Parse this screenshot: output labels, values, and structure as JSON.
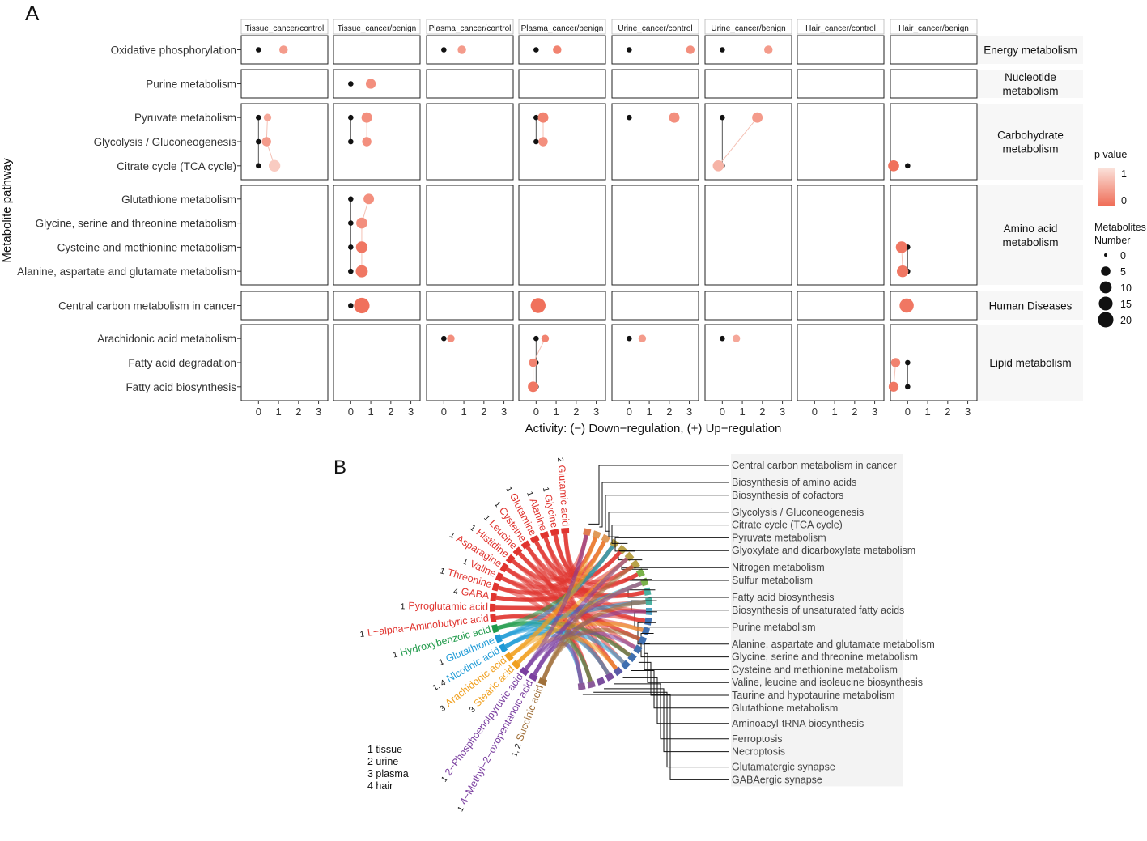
{
  "panel_labels": {
    "a": "A",
    "b": "B"
  },
  "chart_data": [
    {
      "type": "scatter",
      "title": "",
      "xlabel": "Activity: (−) Down−regulation, (+) Up−regulation",
      "ylabel": "Metabolite pathway",
      "xticks": [
        "0",
        "1",
        "2",
        "3"
      ],
      "xlim": [
        -0.7,
        3.3
      ],
      "columns": [
        "Tissue_cancer/control",
        "Tissue_cancer/benign",
        "Plasma_cancer/control",
        "Plasma_cancer/benign",
        "Urine_cancer/control",
        "Urine_cancer/benign",
        "Hair_cancer/control",
        "Hair_cancer/benign"
      ],
      "groups": [
        {
          "label": "Energy metabolism",
          "label_lines": [
            "Energy metabolism"
          ],
          "pathways": [
            "Oxidative phosphorylation"
          ]
        },
        {
          "label": "Nucleotide metabolism",
          "label_lines": [
            "Nucleotide",
            "metabolism"
          ],
          "pathways": [
            "Purine metabolism"
          ]
        },
        {
          "label": "Carbohydrate metabolism",
          "label_lines": [
            "Carbohydrate",
            "metabolism"
          ],
          "pathways": [
            "Pyruvate metabolism",
            "Glycolysis / Gluconeogenesis",
            "Citrate cycle (TCA cycle)"
          ]
        },
        {
          "label": "Amino acid metabolism",
          "label_lines": [
            "Amino acid",
            "metabolism"
          ],
          "pathways": [
            "Glutathione metabolism",
            "Glycine, serine and threonine metabolism",
            "Cysteine and methionine metabolism",
            "Alanine, aspartate and glutamate metabolism"
          ]
        },
        {
          "label": "Human Diseases",
          "label_lines": [
            "Human Diseases"
          ],
          "pathways": [
            "Central carbon metabolism in cancer"
          ]
        },
        {
          "label": "Lipid metabolism",
          "label_lines": [
            "Lipid metabolism"
          ],
          "pathways": [
            "Arachidonic acid metabolism",
            "Fatty acid degradation",
            "Fatty acid biosynthesis"
          ]
        }
      ],
      "points": [
        {
          "pathway": "Oxidative phosphorylation",
          "col": 0,
          "activity": 1.25,
          "n": 3,
          "p": 0.4
        },
        {
          "pathway": "Oxidative phosphorylation",
          "col": 2,
          "activity": 0.9,
          "n": 3,
          "p": 0.4
        },
        {
          "pathway": "Oxidative phosphorylation",
          "col": 3,
          "activity": 1.05,
          "n": 3,
          "p": 0.2
        },
        {
          "pathway": "Oxidative phosphorylation",
          "col": 4,
          "activity": 3.05,
          "n": 3,
          "p": 0.3
        },
        {
          "pathway": "Oxidative phosphorylation",
          "col": 5,
          "activity": 2.3,
          "n": 3,
          "p": 0.4
        },
        {
          "pathway": "Purine metabolism",
          "col": 1,
          "activity": 1.0,
          "n": 5,
          "p": 0.3
        },
        {
          "pathway": "Pyruvate metabolism",
          "col": 0,
          "activity": 0.45,
          "n": 2,
          "p": 0.5
        },
        {
          "pathway": "Pyruvate metabolism",
          "col": 1,
          "activity": 0.8,
          "n": 6,
          "p": 0.3
        },
        {
          "pathway": "Pyruvate metabolism",
          "col": 3,
          "activity": 0.35,
          "n": 6,
          "p": 0.2
        },
        {
          "pathway": "Pyruvate metabolism",
          "col": 4,
          "activity": 2.25,
          "n": 6,
          "p": 0.3
        },
        {
          "pathway": "Pyruvate metabolism",
          "col": 5,
          "activity": 1.75,
          "n": 6,
          "p": 0.4
        },
        {
          "pathway": "Glycolysis / Gluconeogenesis",
          "col": 0,
          "activity": 0.4,
          "n": 4,
          "p": 0.4
        },
        {
          "pathway": "Glycolysis / Gluconeogenesis",
          "col": 1,
          "activity": 0.8,
          "n": 4,
          "p": 0.3
        },
        {
          "pathway": "Glycolysis / Gluconeogenesis",
          "col": 3,
          "activity": 0.35,
          "n": 4,
          "p": 0.3
        },
        {
          "pathway": "Citrate cycle (TCA cycle)",
          "col": 0,
          "activity": 0.8,
          "n": 8,
          "p": 0.8
        },
        {
          "pathway": "Citrate cycle (TCA cycle)",
          "col": 5,
          "activity": -0.2,
          "n": 7,
          "p": 0.6
        },
        {
          "pathway": "Citrate cycle (TCA cycle)",
          "col": 7,
          "activity": -0.7,
          "n": 7,
          "p": 0.05
        },
        {
          "pathway": "Glutathione metabolism",
          "col": 1,
          "activity": 0.9,
          "n": 6,
          "p": 0.3
        },
        {
          "pathway": "Glycine, serine and threonine metabolism",
          "col": 1,
          "activity": 0.55,
          "n": 7,
          "p": 0.3
        },
        {
          "pathway": "Cysteine and methionine metabolism",
          "col": 1,
          "activity": 0.55,
          "n": 8,
          "p": 0.1
        },
        {
          "pathway": "Cysteine and methionine metabolism",
          "col": 7,
          "activity": -0.3,
          "n": 8,
          "p": 0.1
        },
        {
          "pathway": "Alanine, aspartate and glutamate metabolism",
          "col": 1,
          "activity": 0.55,
          "n": 9,
          "p": 0.1
        },
        {
          "pathway": "Alanine, aspartate and glutamate metabolism",
          "col": 7,
          "activity": -0.25,
          "n": 8,
          "p": 0.1
        },
        {
          "pathway": "Central carbon metabolism in cancer",
          "col": 1,
          "activity": 0.55,
          "n": 18,
          "p": 0.05
        },
        {
          "pathway": "Central carbon metabolism in cancer",
          "col": 3,
          "activity": 0.1,
          "n": 16,
          "p": 0.05
        },
        {
          "pathway": "Central carbon metabolism in cancer",
          "col": 7,
          "activity": -0.05,
          "n": 14,
          "p": 0.1
        },
        {
          "pathway": "Arachidonic acid metabolism",
          "col": 2,
          "activity": 0.35,
          "n": 2,
          "p": 0.3
        },
        {
          "pathway": "Arachidonic acid metabolism",
          "col": 3,
          "activity": 0.45,
          "n": 2,
          "p": 0.2
        },
        {
          "pathway": "Arachidonic acid metabolism",
          "col": 4,
          "activity": 0.65,
          "n": 2,
          "p": 0.4
        },
        {
          "pathway": "Arachidonic acid metabolism",
          "col": 5,
          "activity": 0.7,
          "n": 2,
          "p": 0.5
        },
        {
          "pathway": "Fatty acid degradation",
          "col": 3,
          "activity": -0.15,
          "n": 3,
          "p": 0.2
        },
        {
          "pathway": "Fatty acid degradation",
          "col": 7,
          "activity": -0.6,
          "n": 4,
          "p": 0.2
        },
        {
          "pathway": "Fatty acid biosynthesis",
          "col": 3,
          "activity": -0.15,
          "n": 6,
          "p": 0.1
        },
        {
          "pathway": "Fatty acid biosynthesis",
          "col": 7,
          "activity": -0.7,
          "n": 5,
          "p": 0.1
        }
      ],
      "legend": {
        "p_title": "p value",
        "p_ticks": [
          "1",
          "0"
        ],
        "size_title_lines": [
          "Metabolites",
          "Number"
        ],
        "size_values": [
          0,
          5,
          10,
          15,
          20
        ],
        "size_labels": [
          "0",
          "5",
          "10",
          "15",
          "20"
        ]
      }
    },
    {
      "type": "chord",
      "title": "",
      "metabolites": [
        {
          "name": "Glutamic acid",
          "sources": "2",
          "class": "Amino acid",
          "color": "#e0342f"
        },
        {
          "name": "Glycine",
          "sources": "1",
          "class": "Amino acid",
          "color": "#e0342f"
        },
        {
          "name": "Alanine",
          "sources": "1",
          "class": "Amino acid",
          "color": "#e0342f"
        },
        {
          "name": "Glutamine",
          "sources": "1",
          "class": "Amino acid",
          "color": "#e0342f"
        },
        {
          "name": "Cysteine",
          "sources": "1",
          "class": "Amino acid",
          "color": "#e0342f"
        },
        {
          "name": "Leucine",
          "sources": "1",
          "class": "Amino acid",
          "color": "#e0342f"
        },
        {
          "name": "Histidine",
          "sources": "1",
          "class": "Amino acid",
          "color": "#e0342f"
        },
        {
          "name": "Asparagine",
          "sources": "1",
          "class": "Amino acid",
          "color": "#e0342f"
        },
        {
          "name": "Valine",
          "sources": "1",
          "class": "Amino acid",
          "color": "#e0342f"
        },
        {
          "name": "Threonine",
          "sources": "1",
          "class": "Amino acid",
          "color": "#e0342f"
        },
        {
          "name": "GABA",
          "sources": "4",
          "class": "Amino acid",
          "color": "#e0342f"
        },
        {
          "name": "Pyroglutamic acid",
          "sources": "1",
          "class": "Amino acid",
          "color": "#e0342f"
        },
        {
          "name": "L−alpha−Aminobutyric acid",
          "sources": "1",
          "class": "Amino acid",
          "color": "#e0342f"
        },
        {
          "name": "Hydroxybenzoic acid",
          "sources": "1",
          "class": "Benzoic acid",
          "color": "#1f9a4a"
        },
        {
          "name": "Glutathione",
          "sources": "1",
          "class": "Peptide",
          "color": "#1e9ad6"
        },
        {
          "name": "Nicotinic acid",
          "sources": "1, 4",
          "class": "Vitamin",
          "color": "#1e9ad6"
        },
        {
          "name": "Arachidonic acid",
          "sources": "3",
          "class": "Fatty acid",
          "color": "#f0a020"
        },
        {
          "name": "Stearic acid",
          "sources": "3",
          "class": "Fatty acid",
          "color": "#f0a020"
        },
        {
          "name": "2−Phosphoenolpyruvic acid",
          "sources": "1",
          "class": "Organic acid",
          "color": "#7b3fa0"
        },
        {
          "name": "4−Methyl−2−oxopentanoic acid",
          "sources": "1",
          "class": "Organic acid",
          "color": "#7b3fa0"
        },
        {
          "name": "Succinic acid",
          "sources": "1, 2",
          "class": "Organic acid",
          "color": "#a0703a"
        }
      ],
      "pathway_groups": [
        [
          "Central carbon metabolism in cancer"
        ],
        [
          "Biosynthesis of amino acids",
          "Biosynthesis of cofactors"
        ],
        [
          "Glycolysis / Gluconeogenesis",
          "Citrate cycle (TCA cycle)",
          "Pyruvate metabolism",
          "Glyoxylate and dicarboxylate metabolism"
        ],
        [
          "Nitrogen metabolism",
          "Sulfur metabolism"
        ],
        [
          "Fatty acid biosynthesis",
          "Biosynthesis of unsaturated fatty acids"
        ],
        [
          "Purine metabolism"
        ],
        [
          "Alanine, aspartate and glutamate metabolism",
          "Glycine, serine and threonine metabolism",
          "Cysteine and methionine metabolism",
          "Valine, leucine and isoleucine biosynthesis",
          "Taurine and hypotaurine metabolism",
          "Glutathione metabolism"
        ],
        [
          "Aminoacyl-tRNA biosynthesis"
        ],
        [
          "Ferroptosis",
          "Necroptosis"
        ],
        [
          "Glutamatergic synapse",
          "GABAergic synapse"
        ]
      ],
      "source_key": [
        "1 tissue",
        "2 urine",
        "3 plasma",
        "4 hair"
      ]
    }
  ],
  "colors": {
    "point_black": "#111111",
    "p_high": "#fbe3dc",
    "p_low": "#ef6b55",
    "strip_fill": "#f7f7f7"
  }
}
